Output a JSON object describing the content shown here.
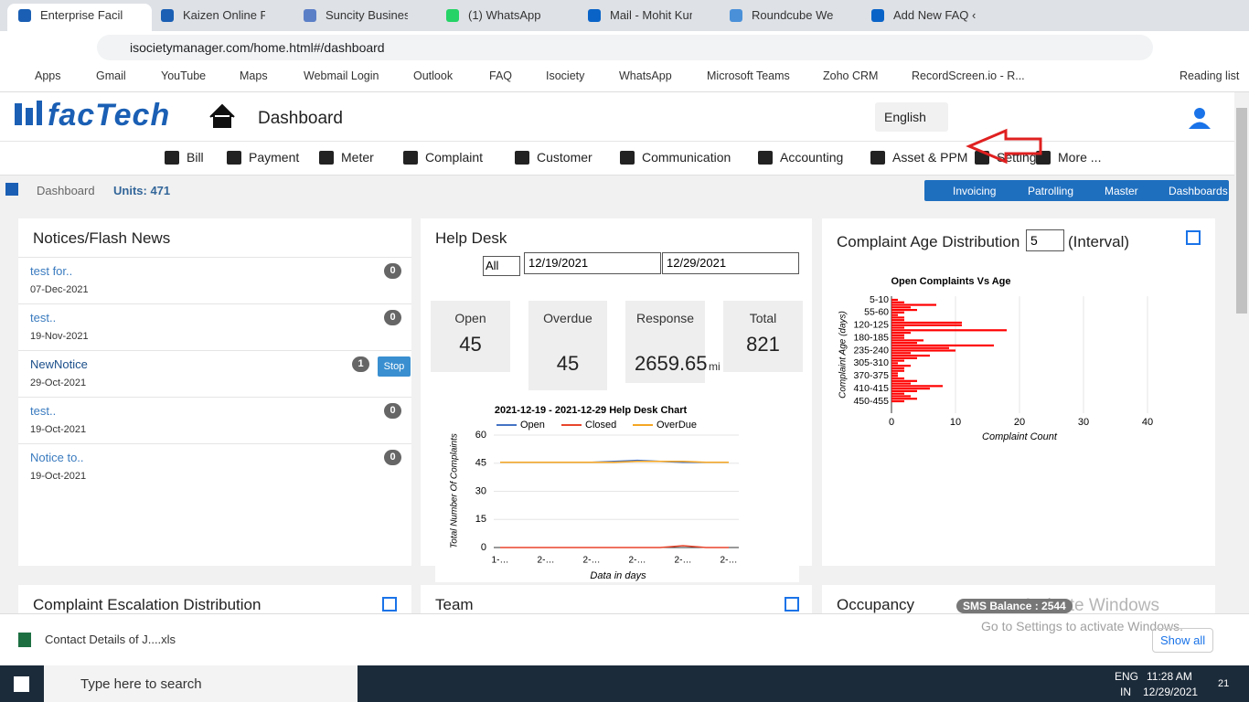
{
  "browser": {
    "tabs": [
      "Enterprise Facility",
      "Kaizen Online Fac",
      "Suncity Business",
      "(1) WhatsApp",
      "Mail - Mohit Kum",
      "Roundcube Web",
      "Add New FAQ ‹ F"
    ],
    "url": "isocietymanager.com/home.html#/dashboard",
    "bookmarks": [
      "Apps",
      "Gmail",
      "YouTube",
      "Maps",
      "Webmail Login",
      "Outlook",
      "FAQ",
      "Isociety",
      "WhatsApp",
      "Microsoft Teams",
      "Zoho CRM",
      "RecordScreen.io - R..."
    ],
    "reading_list": "Reading list"
  },
  "header": {
    "logo": "facTech",
    "title": "Dashboard",
    "language": "English"
  },
  "nav": [
    "Bill",
    "Payment",
    "Meter",
    "Complaint",
    "Customer",
    "Communication",
    "Accounting",
    "Asset & PPM",
    "Settings",
    "More ..."
  ],
  "breadcrumb": {
    "home": "Dashboard",
    "units": "Units: 471"
  },
  "quick_links": [
    "Invoicing",
    "Patrolling",
    "Master",
    "Dashboards"
  ],
  "notices": {
    "title": "Notices/Flash News",
    "items": [
      {
        "text": "test for..",
        "date": "07-Dec-2021",
        "count": "0"
      },
      {
        "text": "test..",
        "date": "19-Nov-2021",
        "count": "0"
      },
      {
        "text": "NewNotice",
        "date": "29-Oct-2021",
        "count": "1",
        "action": "Stop"
      },
      {
        "text": "test..",
        "date": "19-Oct-2021",
        "count": "0"
      },
      {
        "text": "Notice to..",
        "date": "19-Oct-2021",
        "count": "0"
      }
    ]
  },
  "help_desk": {
    "title": "Help Desk",
    "filter": "All",
    "from": "12/19/2021",
    "to": "12/29/2021",
    "stats": [
      {
        "label": "Open",
        "value": "45"
      },
      {
        "label": "Overdue",
        "value": "45"
      },
      {
        "label": "Response",
        "value": "2659.65",
        "unit": "mi"
      },
      {
        "label": "Total",
        "value": "821"
      }
    ]
  },
  "chart_data": [
    {
      "type": "line",
      "title": "2021-12-19 - 2021-12-29 Help Desk Chart",
      "y_label": "Total Number Of Complaints",
      "x_label": "Data in days",
      "categories": [
        "1-…",
        null,
        "2-…",
        null,
        "2-…",
        null,
        "2-…",
        null,
        "2-…",
        null,
        "2-…"
      ],
      "series": [
        {
          "name": "Open",
          "color": "#4472c4",
          "values": [
            45.5,
            45.5,
            45.5,
            45.5,
            45.5,
            46,
            46.5,
            46,
            45.5,
            45.5,
            45.5
          ]
        },
        {
          "name": "Closed",
          "color": "#e8452c",
          "values": [
            0,
            0,
            0,
            0,
            0,
            0,
            0,
            0,
            1,
            0,
            0
          ]
        },
        {
          "name": "OverDue",
          "color": "#f5a623",
          "values": [
            45.5,
            45.5,
            45.5,
            45.5,
            45.5,
            45.5,
            46,
            46,
            46,
            45.5,
            45.5
          ]
        }
      ],
      "ylim": [
        0,
        60
      ],
      "yticks": [
        0,
        15,
        30,
        45,
        60
      ],
      "legend": "top"
    },
    {
      "type": "hbar",
      "title": "Open Complaints Vs Age",
      "y_label": "Complaint Age (days)",
      "x_label": "Complaint Count",
      "color": "#ff0000",
      "categories": [
        "5-10",
        null,
        null,
        null,
        null,
        "55-60",
        null,
        null,
        null,
        null,
        "120-125",
        null,
        null,
        null,
        null,
        "180-185",
        null,
        null,
        null,
        null,
        "235-240",
        null,
        null,
        null,
        null,
        "305-310",
        null,
        null,
        null,
        null,
        "370-375",
        null,
        null,
        null,
        null,
        "410-415",
        null,
        null,
        null,
        null,
        "450-455"
      ],
      "values": [
        1,
        2,
        7,
        3,
        4,
        2,
        1,
        2,
        2,
        11,
        11,
        2,
        18,
        3,
        2,
        2,
        5,
        4,
        16,
        9,
        10,
        3,
        6,
        4,
        2,
        1,
        3,
        2,
        2,
        1,
        1,
        2,
        4,
        3,
        8,
        6,
        4,
        2,
        3,
        4,
        2
      ],
      "xlim": [
        0,
        40
      ],
      "xticks": [
        0,
        10,
        20,
        30,
        40
      ]
    }
  ],
  "complaint_age": {
    "title": "Complaint Age Distribution",
    "interval": "5",
    "interval_label": "(Interval)"
  },
  "bottom_panels": [
    "Complaint Escalation Distribution",
    "Team",
    "Occupancy"
  ],
  "sms_balance": "SMS Balance : 2544",
  "watermark": [
    "Activate Windows",
    "Go to Settings to activate Windows."
  ],
  "download": {
    "file": "Contact Details of J....xls",
    "show_all": "Show all"
  },
  "taskbar": {
    "search": "Type here to search",
    "lang": "ENG",
    "region": "IN",
    "time": "11:28 AM",
    "date": "12/29/2021",
    "notifications": "21"
  }
}
